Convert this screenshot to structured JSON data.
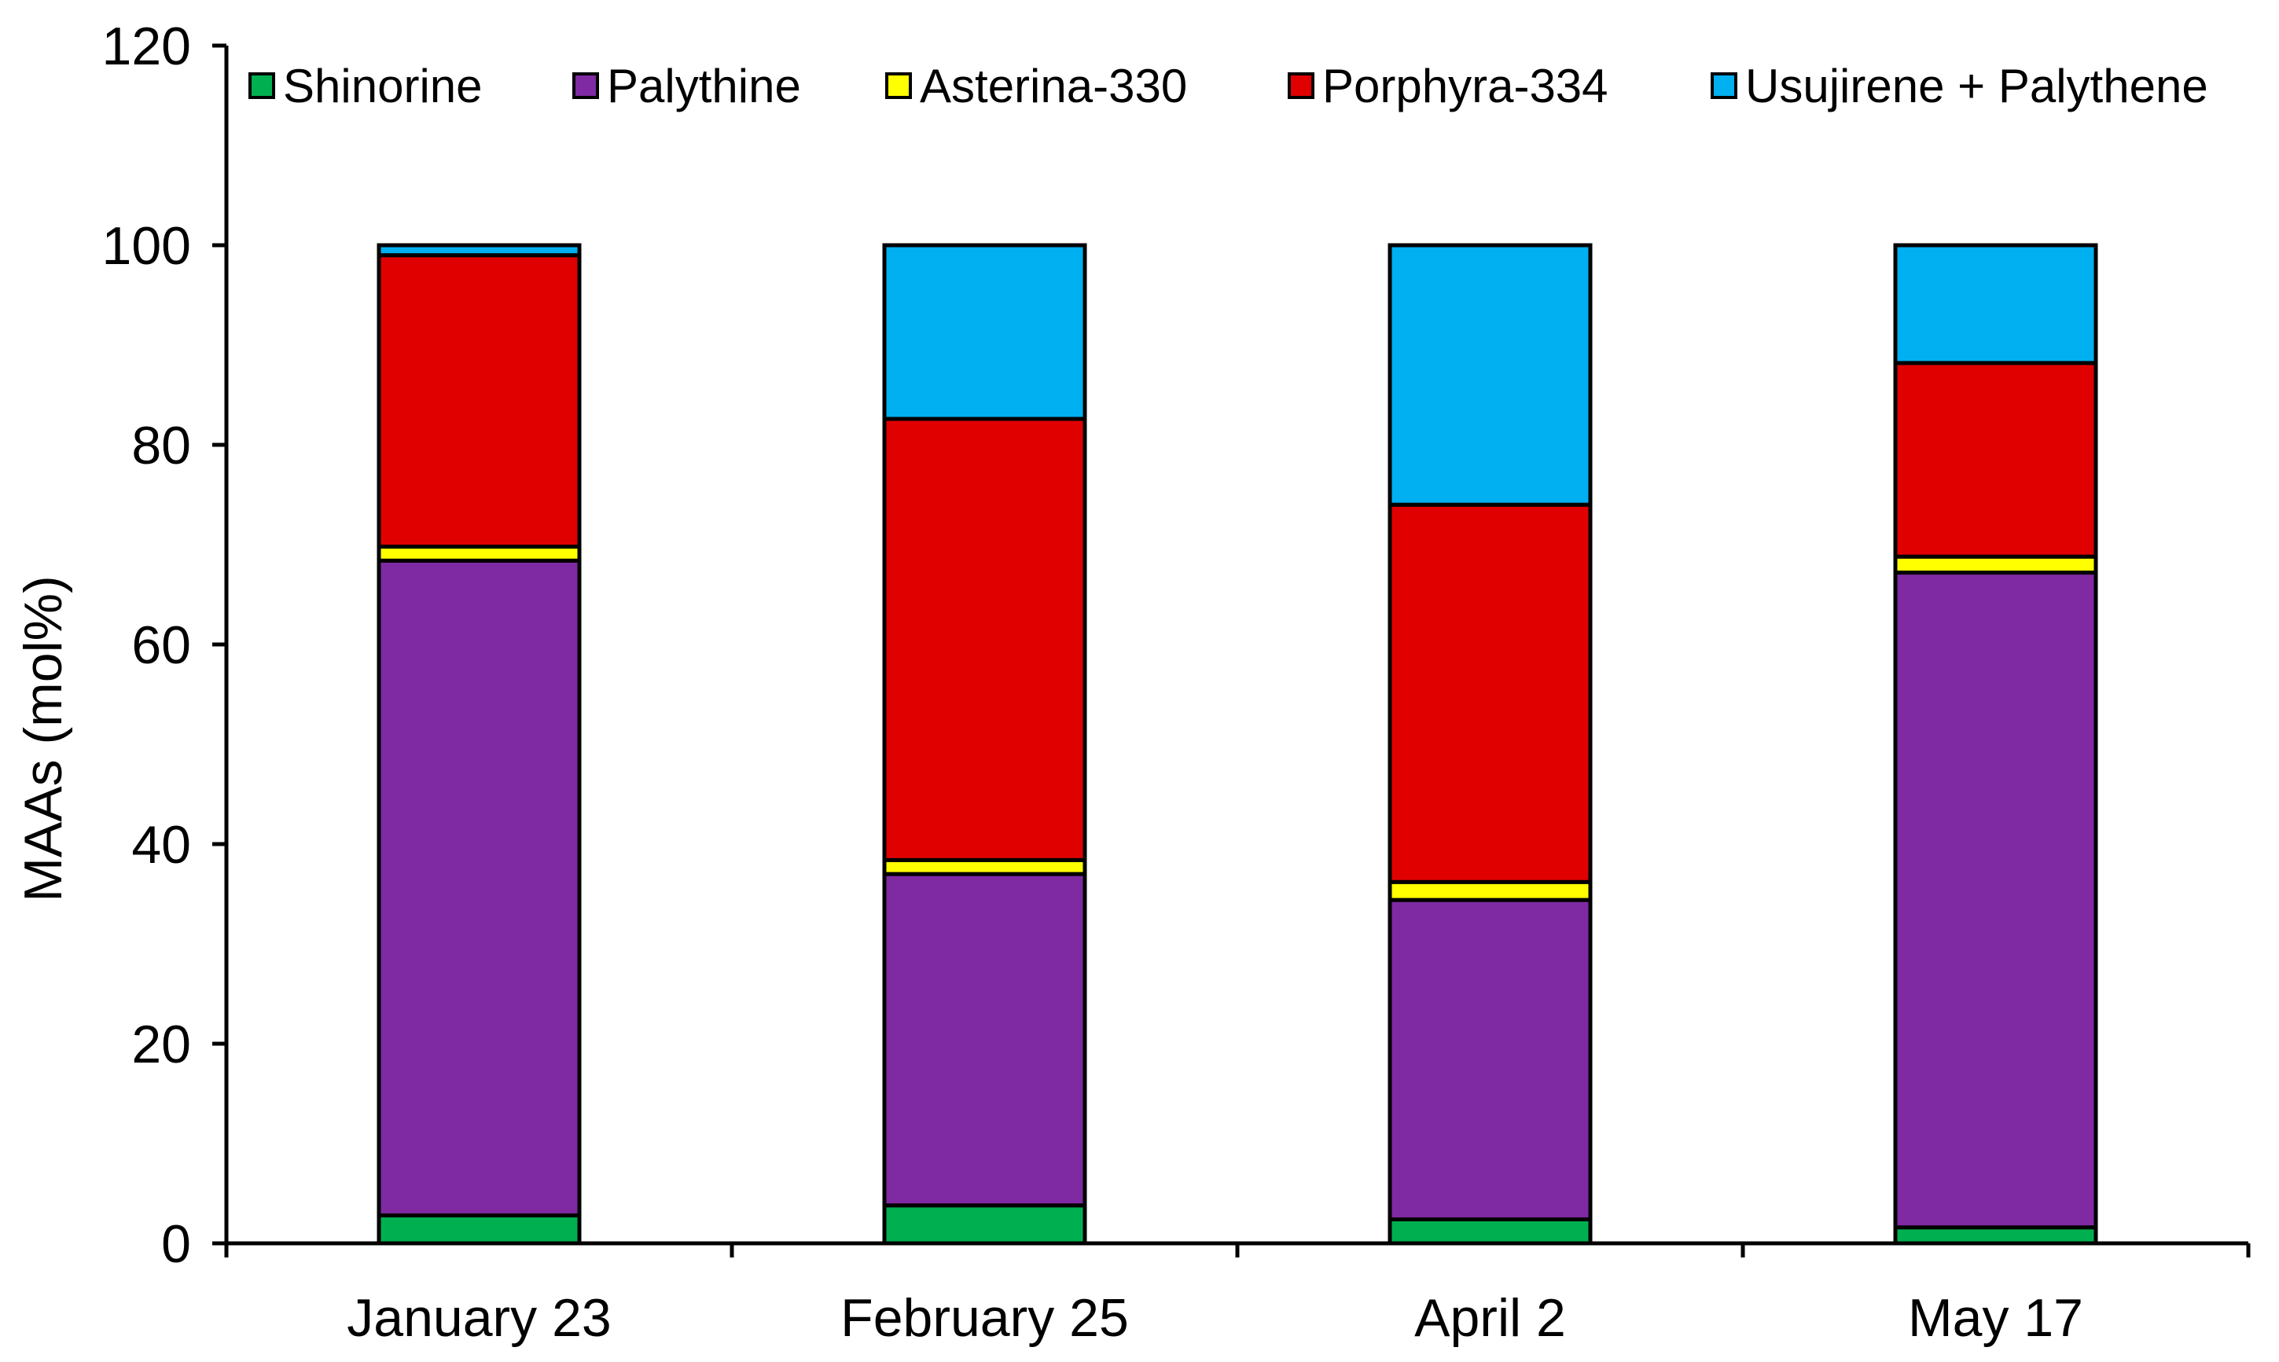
{
  "chart_data": {
    "type": "bar",
    "stacked": true,
    "title": "",
    "xlabel": "",
    "ylabel": "MAAs (mol%)",
    "ylim": [
      0,
      120
    ],
    "yticks": [
      0,
      20,
      40,
      60,
      80,
      100,
      120
    ],
    "grid": false,
    "legend_position": "top",
    "categories": [
      "January 23",
      "February 25",
      "April 2",
      "May 17"
    ],
    "series": [
      {
        "name": "Shinorine",
        "color": "#00b050",
        "values": [
          2.8,
          3.8,
          2.4,
          1.6
        ]
      },
      {
        "name": "Palythine",
        "color": "#7f2aa2",
        "values": [
          65.6,
          33.2,
          32.0,
          65.6
        ]
      },
      {
        "name": "Asterina-330",
        "color": "#ffff00",
        "values": [
          1.4,
          1.4,
          1.8,
          1.6
        ]
      },
      {
        "name": "Porphyra-334",
        "color": "#e00000",
        "values": [
          29.2,
          44.2,
          37.8,
          19.4
        ]
      },
      {
        "name": "Usujirene + Palythene",
        "color": "#00b0f0",
        "values": [
          1.0,
          17.4,
          26.0,
          11.8
        ]
      }
    ]
  }
}
